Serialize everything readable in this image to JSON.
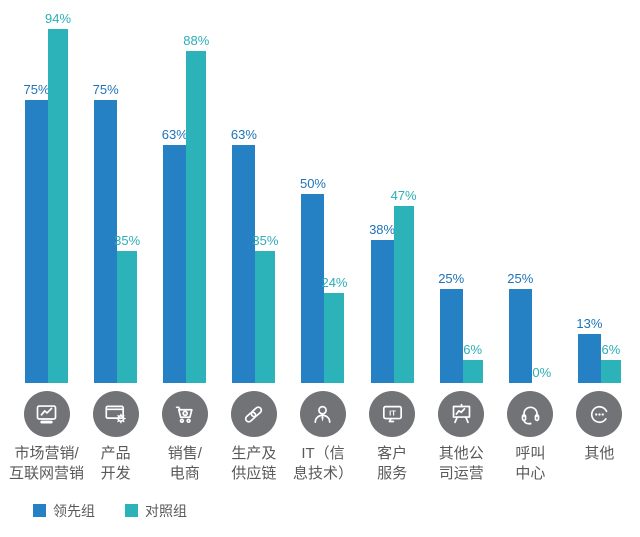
{
  "chart_data": {
    "type": "bar",
    "title": "",
    "xlabel": "",
    "ylabel": "",
    "ylim": [
      0,
      100
    ],
    "grid": false,
    "legend_position": "bottom-left",
    "value_label_format": "percent",
    "categories": [
      "市场营销/\n互联网营销",
      "产品\n开发",
      "销售/\n电商",
      "生产及\n供应链",
      "IT（信\n息技术）",
      "客户\n服务",
      "其他公\n司运营",
      "呼叫\n中心",
      "其他"
    ],
    "series": [
      {
        "name": "领先组",
        "color": "#2581C4",
        "label_color": "#1E73B8",
        "values": [
          75,
          75,
          63,
          63,
          50,
          38,
          25,
          25,
          13
        ]
      },
      {
        "name": "对照组",
        "color": "#2CB3BA",
        "label_color": "#2BAEB7",
        "values": [
          94,
          35,
          88,
          35,
          24,
          47,
          6,
          0,
          6
        ]
      }
    ],
    "icons": [
      "monitor-chart-icon",
      "window-gear-icon",
      "shopping-cart-icon",
      "chain-link-icon",
      "person-icon",
      "monitor-it-icon",
      "easel-chart-icon",
      "headset-icon",
      "ellipsis-circle-icon"
    ],
    "icon_circle_color": "#717377",
    "category_text_color": "#58595B"
  },
  "legend": {
    "items": [
      {
        "label": "领先组",
        "color": "#2581C4"
      },
      {
        "label": "对照组",
        "color": "#2CB3BA"
      }
    ]
  }
}
